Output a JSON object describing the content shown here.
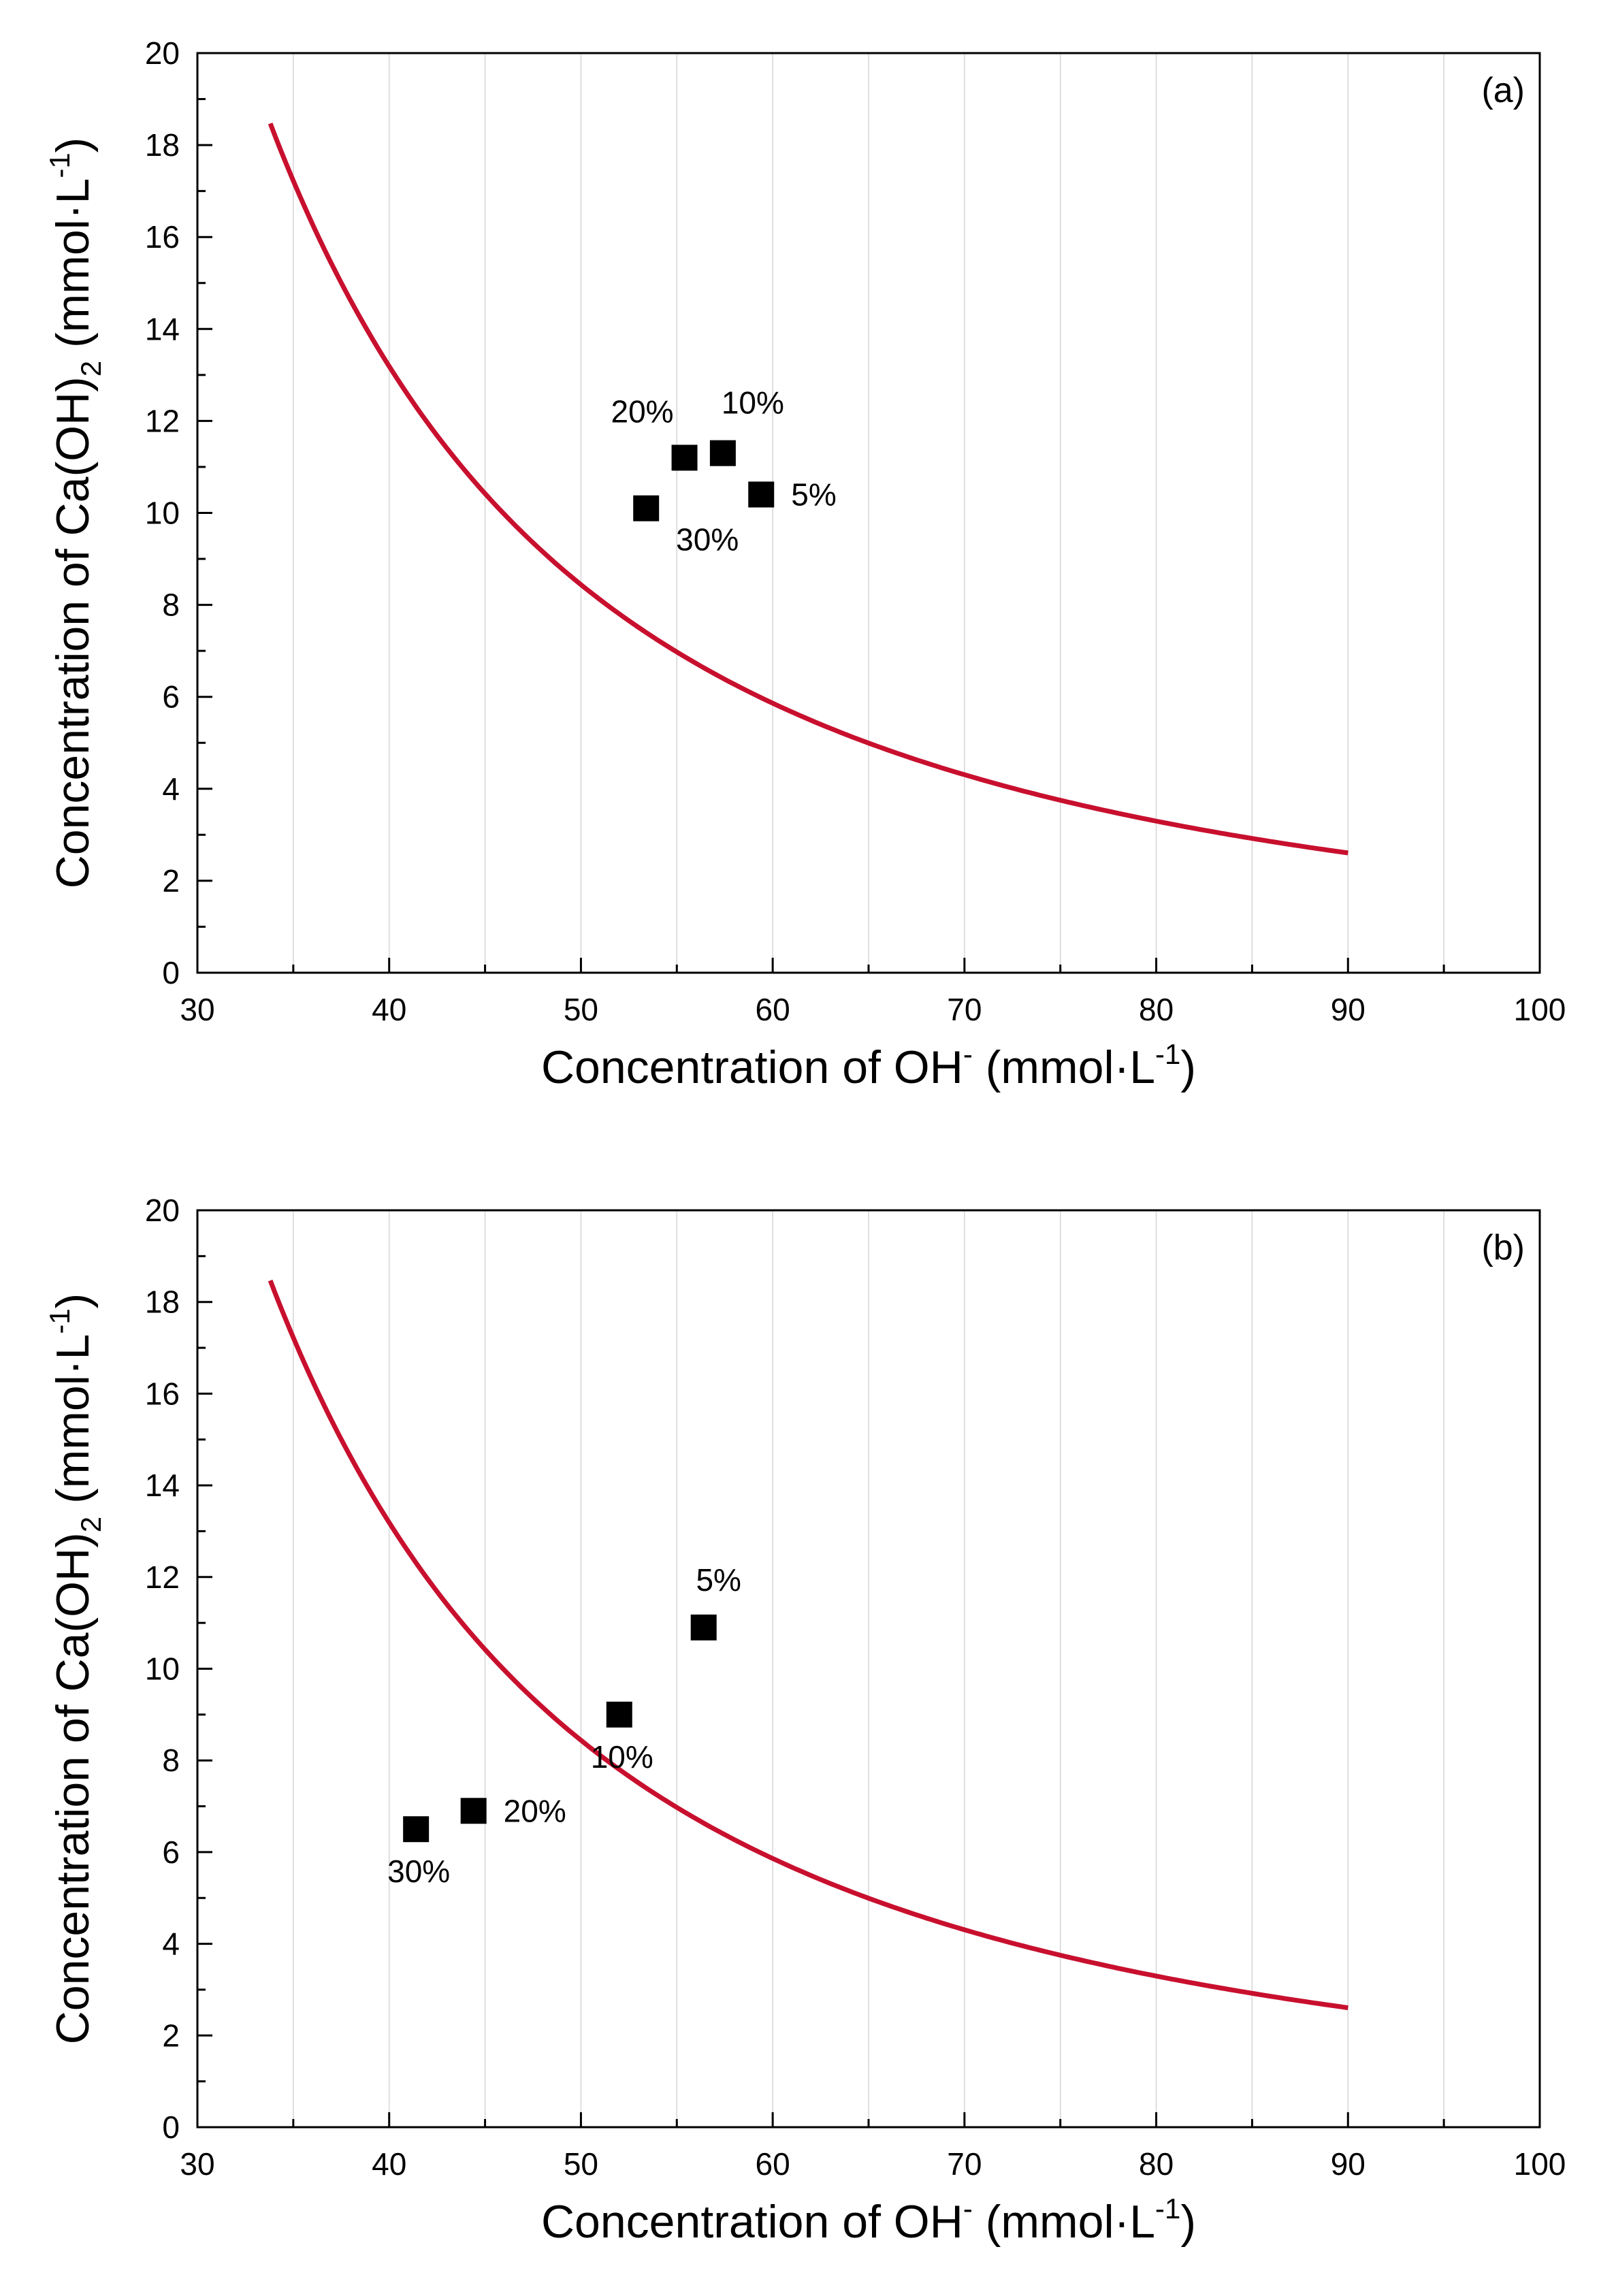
{
  "colors": {
    "curve": "#c8102e",
    "marker": "#000000",
    "grid": "#d7d7d7"
  },
  "chart_data": [
    {
      "type": "scatter",
      "panel_label": "(a)",
      "xlabel": {
        "main": "Concentration of OH",
        "sup": "-",
        "unit_open": " (mmol·L",
        "unit_sup": "-1",
        "unit_close": ")"
      },
      "ylabel": {
        "main": "Concentration of Ca(OH)",
        "sub": "2",
        "unit_open": " (mmol·L",
        "unit_sup": "-1",
        "unit_close": ")"
      },
      "xlim": [
        30,
        100
      ],
      "ylim": [
        0,
        20
      ],
      "xticks": [
        "30",
        "40",
        "50",
        "60",
        "70",
        "80",
        "90",
        "100"
      ],
      "yticks": [
        "0",
        "2",
        "4",
        "6",
        "8",
        "10",
        "12",
        "14",
        "16",
        "18",
        "20"
      ],
      "grid": "vertical",
      "curve": {
        "name": "solubility curve",
        "k": 21100,
        "x_start": 33.8,
        "x_end": 90
      },
      "points": [
        {
          "label": "20%",
          "x": 55.4,
          "y": 11.2,
          "label_pos": "top-left"
        },
        {
          "label": "10%",
          "x": 57.4,
          "y": 11.3,
          "label_pos": "top-right"
        },
        {
          "label": "5%",
          "x": 59.4,
          "y": 10.4,
          "label_pos": "right"
        },
        {
          "label": "30%",
          "x": 53.4,
          "y": 10.1,
          "label_pos": "bottom-right"
        }
      ]
    },
    {
      "type": "scatter",
      "panel_label": "(b)",
      "xlabel": {
        "main": "Concentration of OH",
        "sup": "-",
        "unit_open": " (mmol·L",
        "unit_sup": "-1",
        "unit_close": ")"
      },
      "ylabel": {
        "main": "Concentration of Ca(OH)",
        "sub": "2",
        "unit_open": " (mmol·L",
        "unit_sup": "-1",
        "unit_close": ")"
      },
      "xlim": [
        30,
        100
      ],
      "ylim": [
        0,
        20
      ],
      "xticks": [
        "30",
        "40",
        "50",
        "60",
        "70",
        "80",
        "90",
        "100"
      ],
      "yticks": [
        "0",
        "2",
        "4",
        "6",
        "8",
        "10",
        "12",
        "14",
        "16",
        "18",
        "20"
      ],
      "grid": "vertical",
      "curve": {
        "name": "solubility curve",
        "k": 21100,
        "x_start": 33.8,
        "x_end": 90
      },
      "points": [
        {
          "label": "5%",
          "x": 56.4,
          "y": 10.9,
          "label_pos": "top"
        },
        {
          "label": "10%",
          "x": 52.0,
          "y": 9.0,
          "label_pos": "bottom"
        },
        {
          "label": "20%",
          "x": 44.4,
          "y": 6.9,
          "label_pos": "right"
        },
        {
          "label": "30%",
          "x": 41.4,
          "y": 6.5,
          "label_pos": "bottom"
        }
      ]
    }
  ]
}
